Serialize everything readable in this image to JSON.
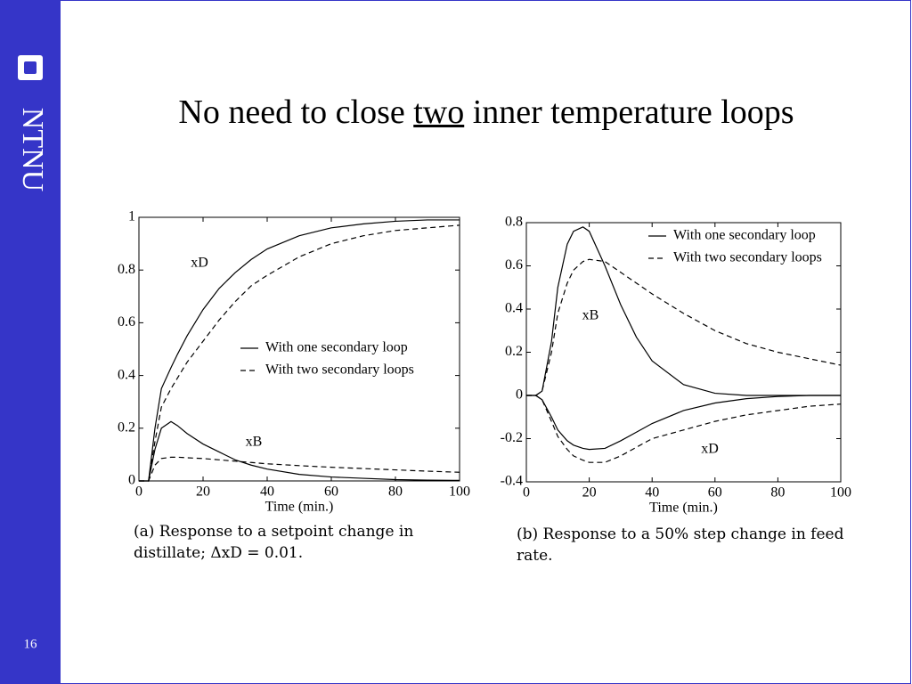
{
  "slide": {
    "logo": "NTNU",
    "page": "16",
    "title": {
      "before": "No need to close",
      "underlined": "two",
      "after": "inner temperature loops"
    }
  },
  "chart_data": [
    {
      "type": "line",
      "caption": "(a) Response to a setpoint change in distillate; ΔxD = 0.01.",
      "xlabel": "Time (min.)",
      "xlim": [
        0,
        100
      ],
      "xticks": [
        0,
        20,
        40,
        60,
        80,
        100
      ],
      "ylim": [
        0,
        1
      ],
      "yticks": [
        0,
        0.2,
        0.4,
        0.6,
        0.8,
        1
      ],
      "annotations": [
        "xD",
        "xB"
      ],
      "x": [
        0,
        3,
        5,
        7,
        10,
        12,
        15,
        20,
        25,
        30,
        35,
        40,
        50,
        60,
        70,
        80,
        90,
        100
      ],
      "series": [
        {
          "name": "With one secondary loop",
          "color": "#000000",
          "dash": false,
          "values": [
            0,
            0,
            0.2,
            0.35,
            0.43,
            0.48,
            0.55,
            0.65,
            0.73,
            0.79,
            0.84,
            0.88,
            0.93,
            0.96,
            0.975,
            0.985,
            0.99,
            0.99
          ]
        },
        {
          "name": "With two secondary loops",
          "color": "#000000",
          "dash": true,
          "values": [
            0,
            0,
            0.15,
            0.28,
            0.35,
            0.39,
            0.45,
            0.53,
            0.61,
            0.68,
            0.74,
            0.78,
            0.85,
            0.9,
            0.93,
            0.95,
            0.96,
            0.97
          ]
        },
        {
          "color": "#000000",
          "dash": false,
          "values": [
            0,
            0,
            0.12,
            0.2,
            0.225,
            0.21,
            0.18,
            0.14,
            0.11,
            0.08,
            0.06,
            0.045,
            0.025,
            0.015,
            0.01,
            0.005,
            0.003,
            0.002
          ]
        },
        {
          "color": "#000000",
          "dash": true,
          "values": [
            0,
            0,
            0.06,
            0.085,
            0.09,
            0.09,
            0.088,
            0.085,
            0.08,
            0.075,
            0.07,
            0.065,
            0.058,
            0.052,
            0.047,
            0.042,
            0.037,
            0.033
          ]
        }
      ]
    },
    {
      "type": "line",
      "caption": "(b) Response to a 50% step change in feed rate.",
      "xlabel": "Time (min.)",
      "xlim": [
        0,
        100
      ],
      "xticks": [
        0,
        20,
        40,
        60,
        80,
        100
      ],
      "ylim": [
        -0.4,
        0.8
      ],
      "yticks": [
        -0.4,
        -0.2,
        0,
        0.2,
        0.4,
        0.6,
        0.8
      ],
      "annotations": [
        "xB",
        "xD"
      ],
      "x": [
        0,
        3,
        5,
        8,
        10,
        13,
        15,
        18,
        20,
        25,
        30,
        35,
        40,
        50,
        60,
        70,
        80,
        90,
        100
      ],
      "series": [
        {
          "name": "With one secondary loop",
          "color": "#000000",
          "dash": false,
          "values": [
            0,
            0,
            0.02,
            0.25,
            0.5,
            0.7,
            0.76,
            0.78,
            0.76,
            0.6,
            0.42,
            0.27,
            0.16,
            0.05,
            0.01,
            0,
            0,
            0,
            0
          ]
        },
        {
          "name": "With two secondary loops",
          "color": "#000000",
          "dash": true,
          "values": [
            0,
            0,
            0.02,
            0.2,
            0.38,
            0.52,
            0.58,
            0.62,
            0.63,
            0.62,
            0.57,
            0.52,
            0.47,
            0.38,
            0.3,
            0.24,
            0.2,
            0.17,
            0.14
          ]
        },
        {
          "color": "#000000",
          "dash": false,
          "values": [
            0,
            0,
            -0.02,
            -0.1,
            -0.16,
            -0.21,
            -0.23,
            -0.245,
            -0.25,
            -0.245,
            -0.21,
            -0.17,
            -0.13,
            -0.07,
            -0.035,
            -0.015,
            -0.005,
            0,
            0
          ]
        },
        {
          "color": "#000000",
          "dash": true,
          "values": [
            0,
            0,
            -0.02,
            -0.12,
            -0.19,
            -0.25,
            -0.28,
            -0.3,
            -0.31,
            -0.31,
            -0.28,
            -0.24,
            -0.2,
            -0.16,
            -0.12,
            -0.09,
            -0.07,
            -0.05,
            -0.04
          ]
        }
      ]
    }
  ]
}
